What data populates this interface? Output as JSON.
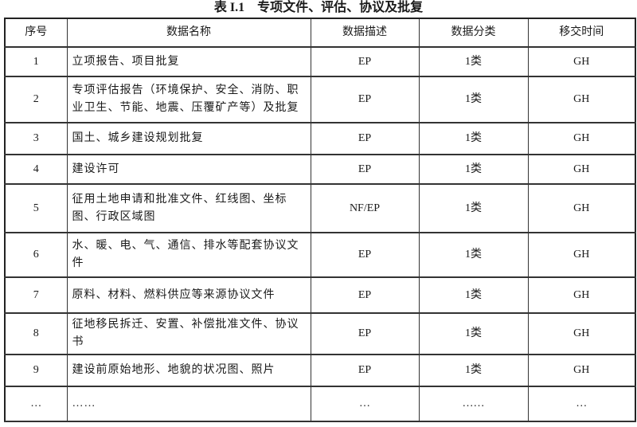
{
  "title": "表 I.1　专项文件、评估、协议及批复",
  "headers": [
    "序号",
    "数据名称",
    "数据描述",
    "数据分类",
    "移交时间"
  ],
  "rows": [
    {
      "no": "1",
      "name": "立项报告、项目批复",
      "desc": "EP",
      "cls": "1类",
      "time": "GH"
    },
    {
      "no": "2",
      "name": "专项评估报告（环境保护、安全、消防、职业卫生、节能、地震、压覆矿产等）及批复",
      "desc": "EP",
      "cls": "1类",
      "time": "GH"
    },
    {
      "no": "3",
      "name": "国土、城乡建设规划批复",
      "desc": "EP",
      "cls": "1类",
      "time": "GH"
    },
    {
      "no": "4",
      "name": "建设许可",
      "desc": "EP",
      "cls": "1类",
      "time": "GH"
    },
    {
      "no": "5",
      "name": "征用土地申请和批准文件、红线图、坐标图、行政区域图",
      "desc": "NF/EP",
      "cls": "1类",
      "time": "GH"
    },
    {
      "no": "6",
      "name": "水、暖、电、气、通信、排水等配套协议文件",
      "desc": "EP",
      "cls": "1类",
      "time": "GH"
    },
    {
      "no": "7",
      "name": "原料、材料、燃料供应等来源协议文件",
      "desc": "EP",
      "cls": "1类",
      "time": "GH"
    },
    {
      "no": "8",
      "name": "征地移民拆迁、安置、补偿批准文件、协议书",
      "desc": "EP",
      "cls": "1类",
      "time": "GH"
    },
    {
      "no": "9",
      "name": "建设前原始地形、地貌的状况图、照片",
      "desc": "EP",
      "cls": "1类",
      "time": "GH"
    },
    {
      "no": "…",
      "name": "……",
      "desc": "…",
      "cls": "……",
      "time": "…"
    }
  ]
}
